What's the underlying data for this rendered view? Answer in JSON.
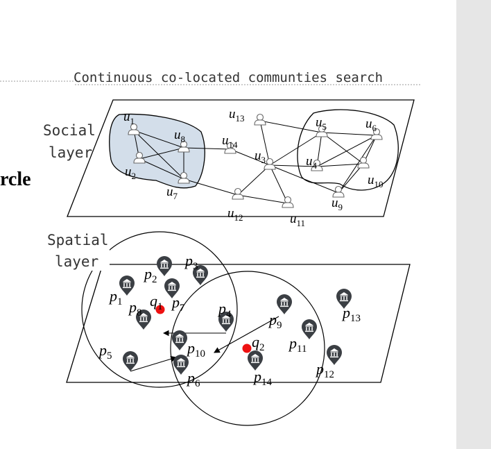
{
  "title": "Continuous co-located communties search",
  "cut_text": "rcle",
  "layers": {
    "social": [
      "Social",
      "layer"
    ],
    "spatial": [
      "Spatial",
      "layer"
    ]
  },
  "users": [
    {
      "id": "u1",
      "base": "u",
      "sub": "1"
    },
    {
      "id": "u2",
      "base": "u",
      "sub": "2"
    },
    {
      "id": "u3",
      "base": "u",
      "sub": "3"
    },
    {
      "id": "u4",
      "base": "u",
      "sub": "4"
    },
    {
      "id": "u5",
      "base": "u",
      "sub": "5"
    },
    {
      "id": "u6",
      "base": "u",
      "sub": "6"
    },
    {
      "id": "u7",
      "base": "u",
      "sub": "7"
    },
    {
      "id": "u8",
      "base": "u",
      "sub": "8"
    },
    {
      "id": "u9",
      "base": "u",
      "sub": "9"
    },
    {
      "id": "u10",
      "base": "u",
      "sub": "10"
    },
    {
      "id": "u11",
      "base": "u",
      "sub": "11"
    },
    {
      "id": "u12",
      "base": "u",
      "sub": "12"
    },
    {
      "id": "u13",
      "base": "u",
      "sub": "13"
    },
    {
      "id": "u14",
      "base": "u",
      "sub": "14"
    }
  ],
  "edges": [
    [
      "u1",
      "u8"
    ],
    [
      "u1",
      "u2"
    ],
    [
      "u1",
      "u7"
    ],
    [
      "u2",
      "u8"
    ],
    [
      "u2",
      "u7"
    ],
    [
      "u8",
      "u7"
    ],
    [
      "u8",
      "u14"
    ],
    [
      "u14",
      "u3"
    ],
    [
      "u13",
      "u3"
    ],
    [
      "u13",
      "u5"
    ],
    [
      "u3",
      "u5"
    ],
    [
      "u3",
      "u4"
    ],
    [
      "u3",
      "u11"
    ],
    [
      "u3",
      "u12"
    ],
    [
      "u3",
      "u9"
    ],
    [
      "u7",
      "u12"
    ],
    [
      "u12",
      "u11"
    ],
    [
      "u5",
      "u6"
    ],
    [
      "u5",
      "u4"
    ],
    [
      "u5",
      "u10"
    ],
    [
      "u6",
      "u4"
    ],
    [
      "u6",
      "u10"
    ],
    [
      "u4",
      "u10"
    ],
    [
      "u10",
      "u9"
    ],
    [
      "u6",
      "u9"
    ]
  ],
  "pois": [
    {
      "id": "p1",
      "base": "p",
      "sub": "1"
    },
    {
      "id": "p2",
      "base": "p",
      "sub": "2"
    },
    {
      "id": "p3",
      "base": "p",
      "sub": "3"
    },
    {
      "id": "p4",
      "base": "p",
      "sub": "4"
    },
    {
      "id": "p5",
      "base": "p",
      "sub": "5"
    },
    {
      "id": "p6",
      "base": "p",
      "sub": "6"
    },
    {
      "id": "p7",
      "base": "p",
      "sub": "7"
    },
    {
      "id": "p8",
      "base": "p",
      "sub": "8"
    },
    {
      "id": "p9",
      "base": "p",
      "sub": "9"
    },
    {
      "id": "p10",
      "base": "p",
      "sub": "10"
    },
    {
      "id": "p11",
      "base": "p",
      "sub": "11"
    },
    {
      "id": "p12",
      "base": "p",
      "sub": "12"
    },
    {
      "id": "p13",
      "base": "p",
      "sub": "13"
    },
    {
      "id": "p14",
      "base": "p",
      "sub": "14"
    }
  ],
  "queries": [
    {
      "id": "q1",
      "base": "q",
      "sub": "1"
    },
    {
      "id": "q2",
      "base": "q",
      "sub": "2"
    }
  ],
  "moves": [
    [
      "p5",
      "p6"
    ],
    [
      "p4",
      "p10"
    ],
    [
      "p9",
      "p10"
    ]
  ],
  "colors": {
    "query": "#ee1111",
    "pin": "#3b3f44",
    "community": "#d3deea",
    "line": "#000000"
  }
}
